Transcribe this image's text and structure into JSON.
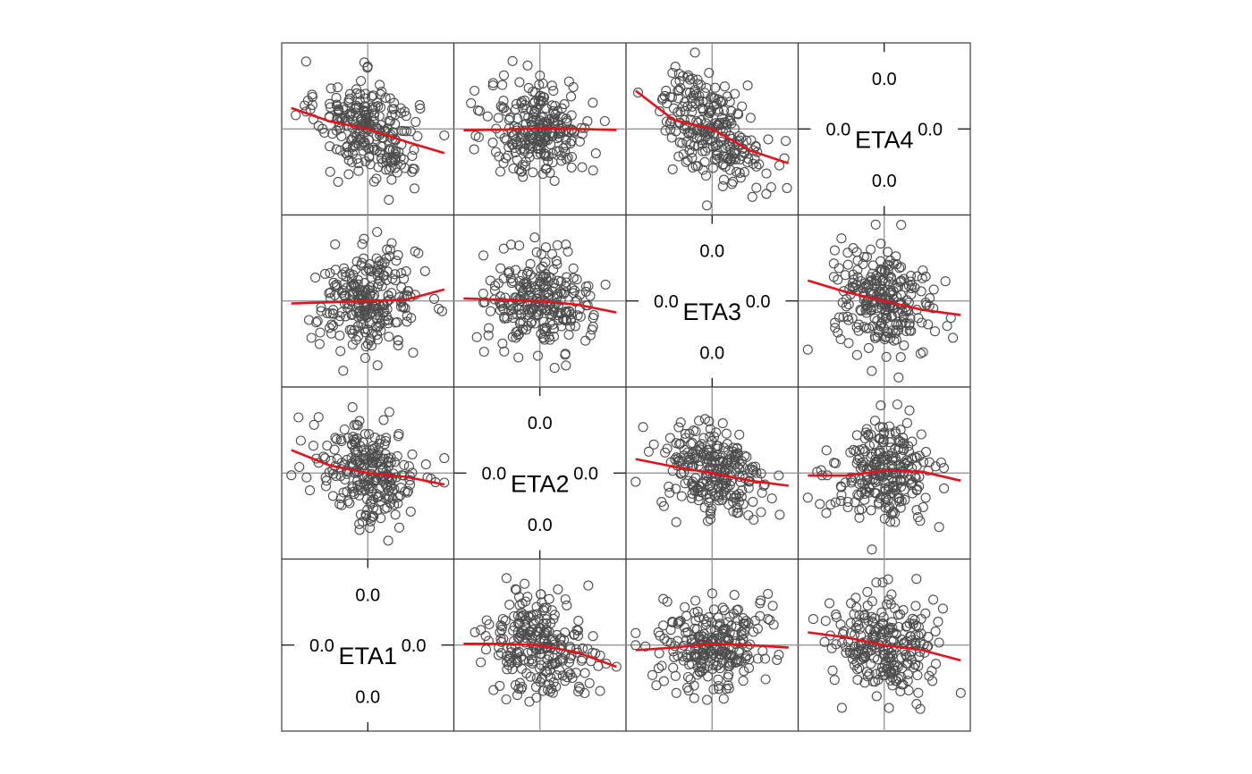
{
  "chart_data": {
    "type": "scatter",
    "kind": "scatterplot-matrix",
    "variables": [
      "ETA1",
      "ETA2",
      "ETA3",
      "ETA4"
    ],
    "diagonal_order": [
      "ETA4",
      "ETA3",
      "ETA2",
      "ETA1"
    ],
    "tick_label": "0.0",
    "range": [
      -3,
      3
    ],
    "reference_line_at": 0,
    "points_per_panel": 250,
    "smoother": "loess",
    "colors": {
      "points": "#4d4d4d",
      "smoother": "#e8111b",
      "reference": "#8c8c8c",
      "panel_border": "#3c3c3c",
      "background": "#ffffff"
    },
    "panels": [
      {
        "row": 0,
        "col": 0,
        "x": "ETA1",
        "y": "ETA4",
        "slope": -0.33,
        "smooth_y": [
          0.82,
          0.3,
          0.0,
          -0.5,
          -0.95
        ]
      },
      {
        "row": 0,
        "col": 1,
        "x": "ETA2",
        "y": "ETA4",
        "slope": 0.0,
        "smooth_y": [
          -0.05,
          -0.03,
          0.03,
          0.0,
          -0.04
        ]
      },
      {
        "row": 0,
        "col": 2,
        "x": "ETA3",
        "y": "ETA4",
        "slope": -0.5,
        "smooth_y": [
          1.5,
          0.35,
          0.0,
          -0.85,
          -1.35
        ]
      },
      {
        "row": 1,
        "col": 0,
        "x": "ETA1",
        "y": "ETA3",
        "slope": 0.08,
        "smooth_y": [
          -0.1,
          -0.05,
          0.0,
          0.05,
          0.45
        ]
      },
      {
        "row": 1,
        "col": 1,
        "x": "ETA2",
        "y": "ETA3",
        "slope": -0.08,
        "smooth_y": [
          0.1,
          0.05,
          0.0,
          -0.15,
          -0.45
        ]
      },
      {
        "row": 1,
        "col": 3,
        "x": "ETA4",
        "y": "ETA3",
        "slope": -0.25,
        "smooth_y": [
          0.8,
          0.35,
          0.0,
          -0.35,
          -0.55
        ]
      },
      {
        "row": 2,
        "col": 0,
        "x": "ETA1",
        "y": "ETA2",
        "slope": -0.25,
        "smooth_y": [
          0.9,
          0.3,
          0.0,
          -0.15,
          -0.45
        ]
      },
      {
        "row": 2,
        "col": 2,
        "x": "ETA3",
        "y": "ETA2",
        "slope": -0.2,
        "smooth_y": [
          0.55,
          0.25,
          0.0,
          -0.3,
          -0.5
        ]
      },
      {
        "row": 2,
        "col": 3,
        "x": "ETA4",
        "y": "ETA2",
        "slope": 0.0,
        "smooth_y": [
          -0.1,
          -0.1,
          0.1,
          0.05,
          -0.3
        ]
      },
      {
        "row": 3,
        "col": 1,
        "x": "ETA2",
        "y": "ETA1",
        "slope": -0.15,
        "smooth_y": [
          0.05,
          0.05,
          0.0,
          -0.3,
          -0.85
        ]
      },
      {
        "row": 3,
        "col": 2,
        "x": "ETA3",
        "y": "ETA1",
        "slope": 0.03,
        "smooth_y": [
          -0.2,
          -0.1,
          0.05,
          0.0,
          -0.1
        ]
      },
      {
        "row": 3,
        "col": 3,
        "x": "ETA4",
        "y": "ETA1",
        "slope": -0.2,
        "smooth_y": [
          0.5,
          0.3,
          0.0,
          -0.2,
          -0.6
        ]
      }
    ]
  }
}
